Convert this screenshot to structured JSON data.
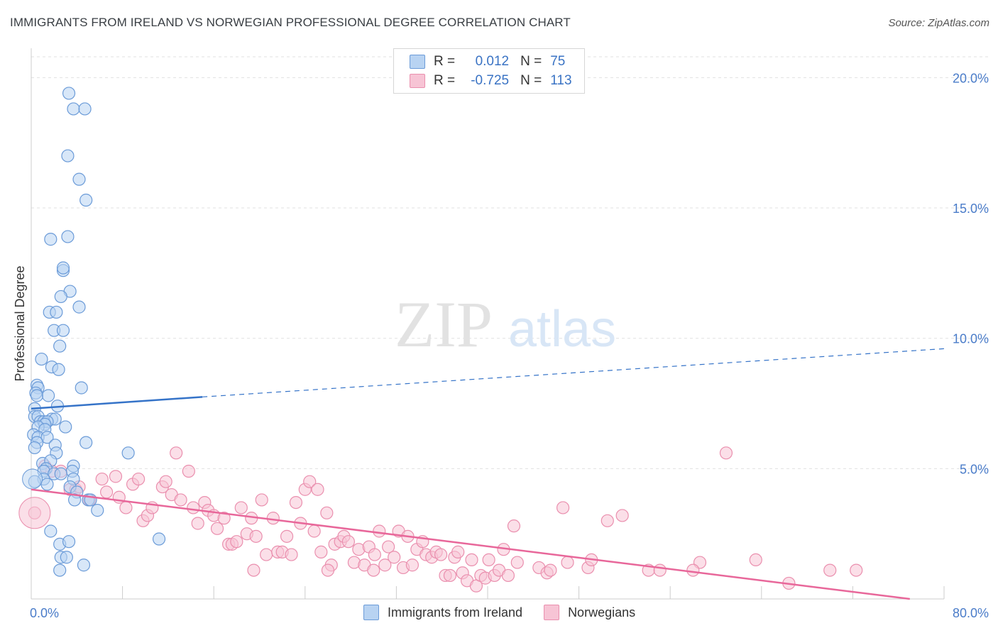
{
  "title": "IMMIGRANTS FROM IRELAND VS NORWEGIAN PROFESSIONAL DEGREE CORRELATION CHART",
  "source": "Source: ZipAtlas.com",
  "watermark": {
    "zip": "ZIP",
    "atlas": "atlas"
  },
  "legend": {
    "r_label": "R =",
    "n_label": "N =",
    "rows": [
      {
        "r": "0.012",
        "n": "75"
      },
      {
        "r": "-0.725",
        "n": "113"
      }
    ]
  },
  "colors": {
    "blue_fill": "#b8d3f2",
    "blue_stroke": "#6b9bd8",
    "blue_line": "#3573c8",
    "pink_fill": "#f7c4d5",
    "pink_stroke": "#ea8fae",
    "pink_line": "#e8679a",
    "tick_text": "#4a7cc9",
    "grid": "#e0e0e0"
  },
  "chart_data": {
    "type": "scatter",
    "title": "IMMIGRANTS FROM IRELAND VS NORWEGIAN PROFESSIONAL DEGREE CORRELATION CHART",
    "xlabel": "",
    "ylabel": "Professional Degree",
    "xlim": [
      0,
      80
    ],
    "ylim": [
      0,
      20.8
    ],
    "x_ticks": [
      {
        "value": 0,
        "label": "0.0%"
      },
      {
        "value": 80,
        "label": "80.0%"
      }
    ],
    "y_ticks": [
      {
        "value": 5,
        "label": "5.0%"
      },
      {
        "value": 10,
        "label": "10.0%"
      },
      {
        "value": 15,
        "label": "15.0%"
      },
      {
        "value": 20,
        "label": "20.0%"
      }
    ],
    "series": [
      {
        "name": "Immigrants from Ireland",
        "color": "blue",
        "trend": {
          "x0": 0,
          "y0": 7.3,
          "x1": 15,
          "y1": 7.75,
          "x_end": 80,
          "y_end": 9.6,
          "solid_until": 15
        },
        "points": [
          [
            3.3,
            19.4
          ],
          [
            3.7,
            18.8
          ],
          [
            4.7,
            18.8
          ],
          [
            3.2,
            17.0
          ],
          [
            4.2,
            16.1
          ],
          [
            4.8,
            15.3
          ],
          [
            1.7,
            13.8
          ],
          [
            3.2,
            13.9
          ],
          [
            2.8,
            12.6
          ],
          [
            2.8,
            12.7
          ],
          [
            3.4,
            11.8
          ],
          [
            2.6,
            11.6
          ],
          [
            4.2,
            11.2
          ],
          [
            1.6,
            11.0
          ],
          [
            2.2,
            11.0
          ],
          [
            2.0,
            10.3
          ],
          [
            2.8,
            10.3
          ],
          [
            2.5,
            9.7
          ],
          [
            0.9,
            9.2
          ],
          [
            1.8,
            8.9
          ],
          [
            2.4,
            8.8
          ],
          [
            4.4,
            8.1
          ],
          [
            0.5,
            8.2
          ],
          [
            0.6,
            8.1
          ],
          [
            0.4,
            7.9
          ],
          [
            0.5,
            7.8
          ],
          [
            1.5,
            7.8
          ],
          [
            2.3,
            7.4
          ],
          [
            0.3,
            7.3
          ],
          [
            0.3,
            7.0
          ],
          [
            0.6,
            7.0
          ],
          [
            1.8,
            6.9
          ],
          [
            2.1,
            6.9
          ],
          [
            0.8,
            6.8
          ],
          [
            1.1,
            6.8
          ],
          [
            1.4,
            6.8
          ],
          [
            1.2,
            6.7
          ],
          [
            0.6,
            6.6
          ],
          [
            1.2,
            6.5
          ],
          [
            3.0,
            6.6
          ],
          [
            0.2,
            6.3
          ],
          [
            0.6,
            6.2
          ],
          [
            1.4,
            6.2
          ],
          [
            0.5,
            6.0
          ],
          [
            4.8,
            6.0
          ],
          [
            2.1,
            5.9
          ],
          [
            0.3,
            5.8
          ],
          [
            8.5,
            5.6
          ],
          [
            2.2,
            5.6
          ],
          [
            1.0,
            5.2
          ],
          [
            1.7,
            5.3
          ],
          [
            3.7,
            5.1
          ],
          [
            1.3,
            5.0
          ],
          [
            1.1,
            4.9
          ],
          [
            3.6,
            4.9
          ],
          [
            2.0,
            4.8
          ],
          [
            2.6,
            4.8
          ],
          [
            1.1,
            4.6
          ],
          [
            3.7,
            4.6
          ],
          [
            0.3,
            4.5
          ],
          [
            1.4,
            4.4
          ],
          [
            3.4,
            4.3
          ],
          [
            4.0,
            4.1
          ],
          [
            3.8,
            3.8
          ],
          [
            5.0,
            3.8
          ],
          [
            5.2,
            3.8
          ],
          [
            5.8,
            3.4
          ],
          [
            1.7,
            2.6
          ],
          [
            11.2,
            2.3
          ],
          [
            2.5,
            2.1
          ],
          [
            3.3,
            2.2
          ],
          [
            2.6,
            1.6
          ],
          [
            3.1,
            1.6
          ],
          [
            4.6,
            1.3
          ],
          [
            2.5,
            1.1
          ]
        ]
      },
      {
        "name": "Norwegians",
        "color": "pink",
        "trend": {
          "x0": 0,
          "y0": 4.2,
          "x1": 77,
          "y1": 0.0
        },
        "points": [
          [
            0.3,
            3.3
          ],
          [
            1.2,
            5.1
          ],
          [
            2.6,
            4.9
          ],
          [
            3.4,
            4.2
          ],
          [
            3.9,
            4.2
          ],
          [
            4.2,
            4.3
          ],
          [
            5.1,
            3.8
          ],
          [
            6.2,
            4.6
          ],
          [
            6.6,
            4.1
          ],
          [
            7.4,
            4.7
          ],
          [
            7.7,
            3.9
          ],
          [
            8.3,
            3.5
          ],
          [
            8.9,
            4.4
          ],
          [
            9.4,
            4.6
          ],
          [
            9.8,
            3.0
          ],
          [
            10.2,
            3.2
          ],
          [
            10.6,
            3.5
          ],
          [
            11.5,
            4.3
          ],
          [
            11.8,
            4.5
          ],
          [
            12.3,
            4.0
          ],
          [
            12.7,
            5.6
          ],
          [
            13.1,
            3.8
          ],
          [
            13.8,
            4.9
          ],
          [
            14.2,
            3.5
          ],
          [
            14.6,
            2.9
          ],
          [
            15.2,
            3.7
          ],
          [
            15.5,
            3.4
          ],
          [
            16.0,
            3.2
          ],
          [
            16.3,
            2.7
          ],
          [
            16.9,
            3.1
          ],
          [
            17.3,
            2.1
          ],
          [
            17.6,
            2.1
          ],
          [
            18.0,
            2.2
          ],
          [
            18.4,
            3.5
          ],
          [
            18.9,
            2.5
          ],
          [
            19.3,
            3.1
          ],
          [
            19.7,
            2.4
          ],
          [
            20.2,
            3.8
          ],
          [
            20.6,
            1.7
          ],
          [
            21.2,
            3.1
          ],
          [
            21.6,
            1.8
          ],
          [
            22.0,
            1.8
          ],
          [
            22.4,
            2.4
          ],
          [
            22.8,
            1.7
          ],
          [
            23.2,
            3.7
          ],
          [
            23.6,
            2.9
          ],
          [
            24.0,
            4.2
          ],
          [
            24.4,
            4.5
          ],
          [
            24.8,
            2.6
          ],
          [
            25.1,
            4.2
          ],
          [
            25.4,
            1.8
          ],
          [
            25.9,
            3.3
          ],
          [
            26.3,
            1.3
          ],
          [
            26.6,
            2.1
          ],
          [
            27.1,
            2.2
          ],
          [
            27.4,
            2.4
          ],
          [
            27.8,
            2.2
          ],
          [
            28.3,
            1.4
          ],
          [
            28.7,
            1.9
          ],
          [
            29.2,
            1.3
          ],
          [
            29.6,
            2.0
          ],
          [
            30.1,
            1.7
          ],
          [
            30.5,
            2.6
          ],
          [
            31.0,
            1.3
          ],
          [
            31.3,
            2.0
          ],
          [
            31.8,
            1.6
          ],
          [
            32.2,
            2.6
          ],
          [
            32.6,
            1.2
          ],
          [
            33.0,
            2.4
          ],
          [
            33.4,
            1.3
          ],
          [
            33.8,
            1.9
          ],
          [
            34.3,
            2.2
          ],
          [
            34.6,
            1.7
          ],
          [
            35.1,
            1.6
          ],
          [
            35.5,
            1.8
          ],
          [
            35.9,
            1.7
          ],
          [
            36.3,
            0.9
          ],
          [
            36.7,
            0.9
          ],
          [
            37.1,
            1.6
          ],
          [
            37.4,
            1.8
          ],
          [
            37.8,
            1.0
          ],
          [
            38.2,
            0.7
          ],
          [
            38.6,
            1.5
          ],
          [
            39.0,
            0.5
          ],
          [
            39.4,
            0.9
          ],
          [
            39.8,
            0.8
          ],
          [
            40.1,
            1.5
          ],
          [
            40.6,
            0.9
          ],
          [
            41.0,
            1.1
          ],
          [
            41.4,
            1.9
          ],
          [
            41.8,
            0.9
          ],
          [
            42.3,
            2.8
          ],
          [
            42.6,
            1.4
          ],
          [
            44.5,
            1.2
          ],
          [
            45.2,
            1.0
          ],
          [
            46.6,
            3.5
          ],
          [
            47.0,
            1.4
          ],
          [
            48.8,
            1.2
          ],
          [
            49.1,
            1.5
          ],
          [
            50.5,
            3.0
          ],
          [
            51.8,
            3.2
          ],
          [
            54.1,
            1.1
          ],
          [
            55.1,
            1.1
          ],
          [
            58.6,
            1.4
          ],
          [
            60.9,
            5.6
          ],
          [
            63.5,
            1.5
          ],
          [
            66.4,
            0.6
          ],
          [
            72.3,
            1.1
          ],
          [
            26.0,
            1.1
          ],
          [
            19.5,
            1.1
          ],
          [
            45.5,
            1.1
          ],
          [
            58.0,
            1.1
          ],
          [
            70.0,
            1.1
          ],
          [
            30.0,
            1.1
          ],
          [
            1.8,
            4.9
          ]
        ]
      }
    ]
  },
  "bottom_legend": [
    "Immigrants from Ireland",
    "Norwegians"
  ]
}
